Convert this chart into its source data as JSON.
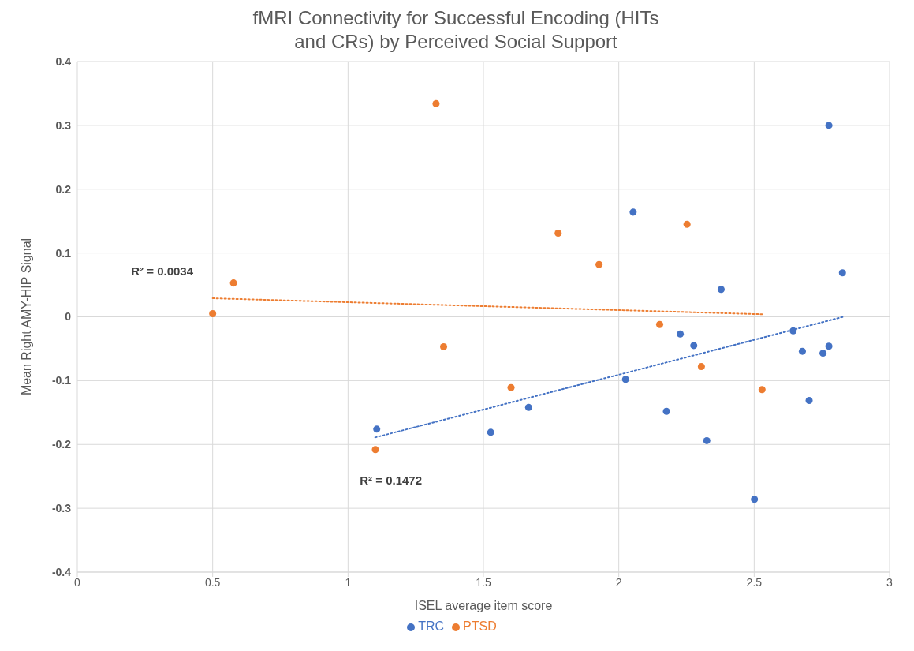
{
  "chart_data": {
    "type": "scatter",
    "title": "fMRI Connectivity for Successful Encoding (HITs and CRs) by Perceived Social Support",
    "xlabel": "ISEL average item score",
    "ylabel": "Mean Right AMY-HIP Signal",
    "xlim": [
      0,
      3
    ],
    "xticks": [
      0,
      0.5,
      1,
      1.5,
      2,
      2.5,
      3
    ],
    "ylim": [
      -0.4,
      0.4
    ],
    "yticks": [
      -0.4,
      -0.3,
      -0.2,
      -0.1,
      0,
      0.1,
      0.2,
      0.3,
      0.4
    ],
    "grid": true,
    "legend": "bottom",
    "marker": "circle",
    "series": [
      {
        "name": "TRC",
        "color": "#4472c4",
        "x": [
          1.106,
          1.527,
          1.667,
          2.025,
          2.053,
          2.176,
          2.227,
          2.277,
          2.325,
          2.378,
          2.501,
          2.644,
          2.678,
          2.703,
          2.754,
          2.776,
          2.776,
          2.826
        ],
        "values": [
          -0.176,
          -0.181,
          -0.142,
          -0.098,
          0.164,
          -0.148,
          -0.027,
          -0.045,
          -0.194,
          0.043,
          -0.286,
          -0.022,
          -0.054,
          -0.131,
          -0.057,
          0.3,
          -0.046,
          0.069
        ]
      },
      {
        "name": "PTSD",
        "color": "#ed7d31",
        "x": [
          0.5,
          0.577,
          1.101,
          1.325,
          1.353,
          1.602,
          1.776,
          1.927,
          2.151,
          2.252,
          2.305,
          2.529
        ],
        "values": [
          0.005,
          0.053,
          -0.208,
          0.334,
          -0.047,
          -0.111,
          0.131,
          0.082,
          -0.012,
          0.145,
          -0.078,
          -0.114
        ]
      },
      {
        "type": "line",
        "color": "#ed7d31",
        "line_style": "dotted",
        "marker": "none",
        "x": [
          0.5,
          2.53
        ],
        "values": [
          0.029,
          0.004
        ]
      },
      {
        "type": "line",
        "color": "#4472c4",
        "line_style": "dotted",
        "marker": "none",
        "x": [
          1.1,
          2.83
        ],
        "values": [
          -0.189,
          0
        ]
      }
    ],
    "annotations": [
      "R² = 0.0034",
      "R² = 0.1472"
    ]
  }
}
